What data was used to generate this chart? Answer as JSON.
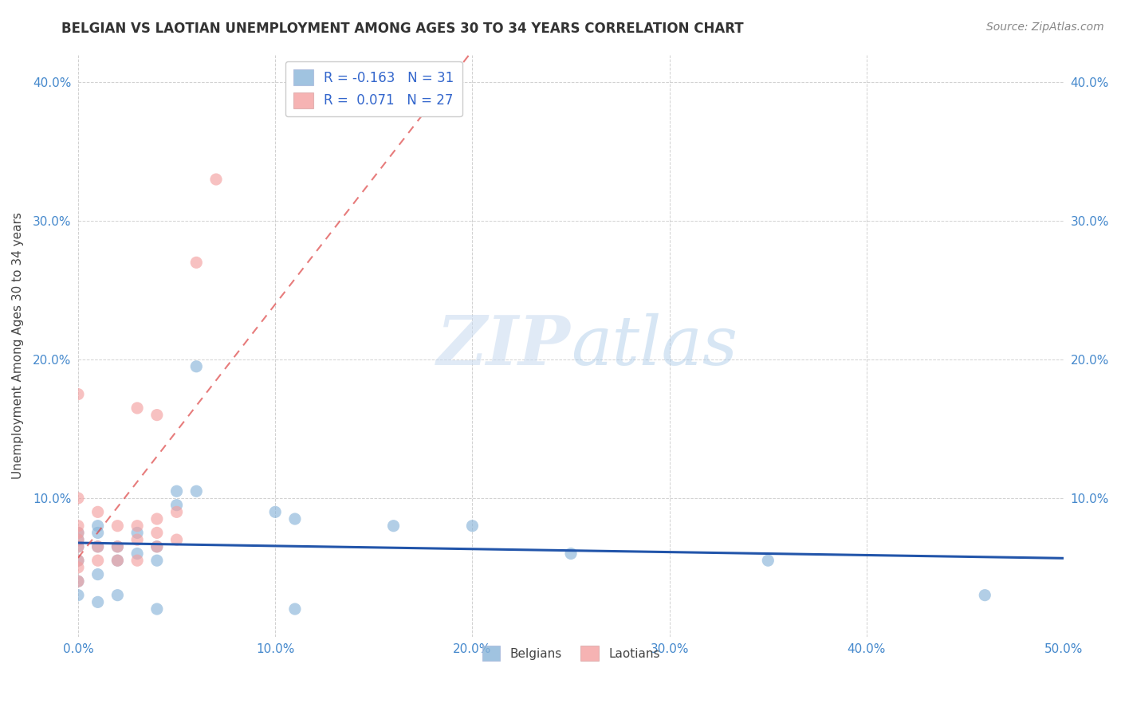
{
  "title": "BELGIAN VS LAOTIAN UNEMPLOYMENT AMONG AGES 30 TO 34 YEARS CORRELATION CHART",
  "source": "Source: ZipAtlas.com",
  "ylabel": "Unemployment Among Ages 30 to 34 years",
  "xlabel": "",
  "xlim": [
    0.0,
    0.5
  ],
  "ylim": [
    0.0,
    0.42
  ],
  "xticks": [
    0.0,
    0.1,
    0.2,
    0.3,
    0.4,
    0.5
  ],
  "yticks": [
    0.0,
    0.1,
    0.2,
    0.3,
    0.4
  ],
  "ytick_labels": [
    "",
    "10.0%",
    "20.0%",
    "30.0%",
    "40.0%"
  ],
  "xtick_labels": [
    "0.0%",
    "10.0%",
    "20.0%",
    "30.0%",
    "40.0%",
    "50.0%"
  ],
  "belgian_color": "#89b4d9",
  "laotian_color": "#f4a0a0",
  "belgian_R": -0.163,
  "belgian_N": 31,
  "laotian_R": 0.071,
  "laotian_N": 27,
  "belgian_line_color": "#2255aa",
  "laotian_line_color": "#dd4444",
  "watermark_color": "#ddeeff",
  "background_color": "#ffffff",
  "grid_color": "#cccccc",
  "title_color": "#333333",
  "axis_label_color": "#444444",
  "tick_label_color": "#4488cc",
  "legend_R_color": "#3366cc",
  "belgian_x": [
    0.0,
    0.0,
    0.0,
    0.0,
    0.0,
    0.0,
    0.01,
    0.01,
    0.01,
    0.01,
    0.01,
    0.02,
    0.02,
    0.02,
    0.03,
    0.03,
    0.04,
    0.04,
    0.04,
    0.05,
    0.05,
    0.06,
    0.06,
    0.1,
    0.11,
    0.11,
    0.16,
    0.2,
    0.25,
    0.35,
    0.46
  ],
  "belgian_y": [
    0.055,
    0.065,
    0.07,
    0.075,
    0.04,
    0.03,
    0.065,
    0.075,
    0.08,
    0.045,
    0.025,
    0.065,
    0.055,
    0.03,
    0.06,
    0.075,
    0.065,
    0.055,
    0.02,
    0.095,
    0.105,
    0.105,
    0.195,
    0.09,
    0.085,
    0.02,
    0.08,
    0.08,
    0.06,
    0.055,
    0.03
  ],
  "laotian_x": [
    0.0,
    0.0,
    0.0,
    0.0,
    0.0,
    0.0,
    0.0,
    0.0,
    0.0,
    0.01,
    0.01,
    0.01,
    0.02,
    0.02,
    0.02,
    0.03,
    0.03,
    0.03,
    0.03,
    0.04,
    0.04,
    0.04,
    0.04,
    0.05,
    0.05,
    0.06,
    0.07
  ],
  "laotian_y": [
    0.04,
    0.05,
    0.055,
    0.065,
    0.07,
    0.075,
    0.08,
    0.1,
    0.175,
    0.055,
    0.065,
    0.09,
    0.055,
    0.065,
    0.08,
    0.055,
    0.07,
    0.08,
    0.165,
    0.065,
    0.075,
    0.085,
    0.16,
    0.07,
    0.09,
    0.27,
    0.33
  ]
}
